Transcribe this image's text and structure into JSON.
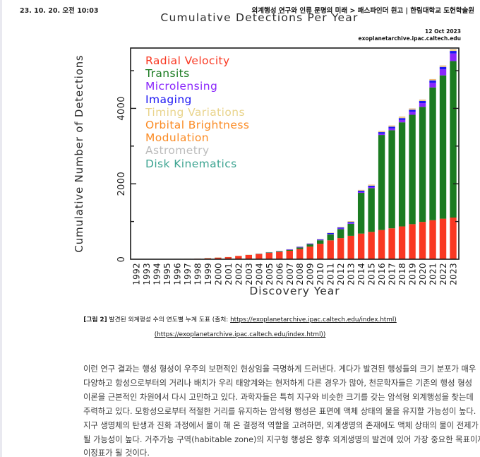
{
  "header": {
    "timestamp": "23. 10. 20. 오전 10:03",
    "doc_title": "외계행성 연구와 인류 문명의 미래 > 패스파인더 원고 | 한림대학교 도헌학술원"
  },
  "figure_caption": {
    "label": "[그림 2]",
    "text": " 발견된 외계행성 수의 연도별 누계 도표 (출처: ",
    "link1": "https://exoplanetarchive.ipac.caltech.edu/index.html)",
    "link2": "(https://exoplanetarchive.ipac.caltech.edu/index.html))"
  },
  "body": {
    "lines": [
      "이런 연구 결과는 행성 형성이 우주의 보편적인 현상임을 극명하게 드러낸다. 게다가 발견된 행성들의 크기 분포가 매우",
      "다양하고 항성으로부터의 거리나 배치가 우리 태양계와는 현저하게 다른 경우가 많아, 천문학자들은 기존의 행성 형성",
      "이론을 근본적인 차원에서 다시 고민하고 있다. 과학자들은 특히 지구와 비슷한 크기를 갖는 암석형 외계행성을 찾는데",
      "주력하고 있다. 모항성으로부터 적절한 거리를 유지하는 암석형 행성은 표면에 액체 상태의 물을 유지할 가능성이 높다.",
      "지구 생명체의 탄생과 진화 과정에서 물이 해 온 결정적 역할을 고려하면, 외계생명의 존재에도 액체 상태의 물이 전제가",
      "될 가능성이 높다. 거주가능 구역(habitable zone)의 지구형 행성은 향후 외계생명의 발견에 있어 가장 중요한 목표이자",
      "이정표가 될 것이다."
    ]
  },
  "chart_data": {
    "type": "bar",
    "stacked": true,
    "title": "Cumulative Detections Per Year",
    "date_label": "12 Oct 2023",
    "source_label": "exoplanetarchive.ipac.caltech.edu",
    "xlabel": "Discovery Year",
    "ylabel": "Cumulative Number of Detections",
    "ylim": [
      0,
      5600
    ],
    "yticks_labeled": [
      0,
      2000,
      4000
    ],
    "yticks_minor": [
      1000,
      3000,
      5000
    ],
    "grid": false,
    "legend_position": "upper-left",
    "categories": [
      1992,
      1993,
      1994,
      1995,
      1996,
      1997,
      1998,
      1999,
      2000,
      2001,
      2002,
      2003,
      2004,
      2005,
      2006,
      2007,
      2008,
      2009,
      2010,
      2011,
      2012,
      2013,
      2014,
      2015,
      2016,
      2017,
      2018,
      2019,
      2020,
      2021,
      2022,
      2023
    ],
    "series": [
      {
        "name": "Radial Velocity",
        "color": "#f93822",
        "values": [
          0,
          0,
          0,
          1,
          7,
          8,
          15,
          27,
          43,
          55,
          87,
          113,
          138,
          170,
          193,
          225,
          270,
          335,
          410,
          500,
          560,
          620,
          680,
          725,
          775,
          820,
          870,
          930,
          990,
          1035,
          1075,
          1105
        ]
      },
      {
        "name": "Transits",
        "color": "#1b7b21",
        "values": [
          0,
          0,
          0,
          0,
          0,
          0,
          0,
          1,
          1,
          1,
          1,
          2,
          6,
          9,
          16,
          22,
          40,
          60,
          92,
          160,
          240,
          320,
          1080,
          1160,
          2520,
          2600,
          2760,
          2900,
          3050,
          3520,
          3800,
          4150
        ]
      },
      {
        "name": "Microlensing",
        "color": "#8a26fb",
        "values": [
          0,
          0,
          0,
          0,
          0,
          0,
          0,
          0,
          0,
          0,
          0,
          0,
          3,
          4,
          5,
          6,
          8,
          9,
          11,
          13,
          16,
          18,
          22,
          27,
          33,
          48,
          62,
          78,
          98,
          122,
          158,
          200
        ]
      },
      {
        "name": "Imaging",
        "color": "#1c16f3",
        "values": [
          0,
          0,
          0,
          0,
          0,
          0,
          0,
          0,
          0,
          0,
          0,
          0,
          1,
          2,
          4,
          8,
          11,
          13,
          16,
          20,
          25,
          30,
          34,
          38,
          42,
          46,
          50,
          54,
          58,
          62,
          66,
          69
        ]
      },
      {
        "name": "Timing Variations",
        "color": "#e9d48c",
        "values": [
          2,
          3,
          4,
          4,
          4,
          4,
          4,
          4,
          4,
          4,
          4,
          4,
          4,
          5,
          5,
          6,
          6,
          7,
          8,
          10,
          12,
          14,
          15,
          17,
          19,
          21,
          23,
          24,
          25,
          26,
          27,
          28
        ]
      },
      {
        "name": "Orbital Brightness Modulation",
        "color": "#fb8b24",
        "values": [
          0,
          0,
          0,
          0,
          0,
          0,
          0,
          0,
          0,
          0,
          0,
          0,
          0,
          0,
          0,
          0,
          0,
          0,
          1,
          2,
          3,
          5,
          6,
          7,
          8,
          9,
          9,
          9,
          9,
          9,
          9,
          9
        ]
      },
      {
        "name": "Astrometry",
        "color": "#bcbcbc",
        "values": [
          0,
          0,
          0,
          0,
          0,
          0,
          0,
          0,
          0,
          0,
          0,
          0,
          0,
          0,
          0,
          0,
          0,
          0,
          0,
          0,
          1,
          1,
          1,
          1,
          1,
          2,
          2,
          2,
          2,
          2,
          2,
          3
        ]
      },
      {
        "name": "Disk Kinematics",
        "color": "#3da491",
        "values": [
          0,
          0,
          0,
          0,
          0,
          0,
          0,
          0,
          0,
          0,
          0,
          0,
          0,
          0,
          0,
          0,
          0,
          0,
          0,
          0,
          0,
          0,
          0,
          0,
          0,
          0,
          1,
          1,
          1,
          1,
          1,
          1
        ]
      }
    ],
    "legend_lines": [
      {
        "text": "Radial Velocity",
        "color": "#f93822"
      },
      {
        "text": "Transits",
        "color": "#1b7b21"
      },
      {
        "text": "Microlensing",
        "color": "#8a26fb"
      },
      {
        "text": "Imaging",
        "color": "#1c16f3"
      },
      {
        "text": "Timing Variations",
        "color": "#e9d48c"
      },
      {
        "text": "Orbital Brightness",
        "color": "#fb8b24"
      },
      {
        "text": "Modulation",
        "color": "#fb8b24"
      },
      {
        "text": "Astrometry",
        "color": "#bcbcbc"
      },
      {
        "text": "Disk Kinematics",
        "color": "#3da491"
      }
    ]
  }
}
